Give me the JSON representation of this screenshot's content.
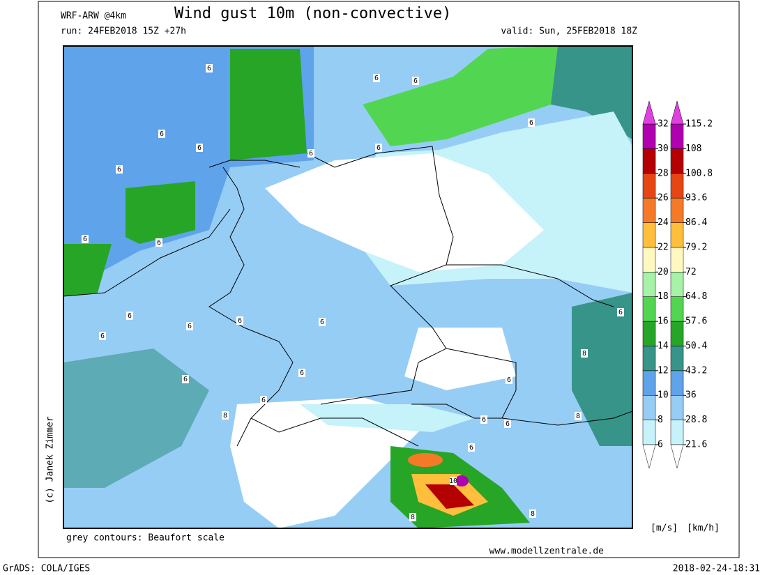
{
  "header": {
    "model": "WRF-ARW @4km",
    "title": "Wind gust 10m (non-convective)",
    "run": "run: 24FEB2018 15Z +27h",
    "valid": "valid: Sun, 25FEB2018 18Z"
  },
  "map": {
    "contour_labels": [
      "6",
      "6",
      "6",
      "6",
      "6",
      "6",
      "6",
      "6",
      "6",
      "6",
      "6",
      "6",
      "6",
      "6",
      "6",
      "6",
      "6",
      "6",
      "6",
      "6",
      "6",
      "6",
      "6",
      "6",
      "8",
      "8",
      "8",
      "8",
      "8",
      "10"
    ]
  },
  "legend": {
    "ms": [
      6,
      8,
      10,
      12,
      14,
      16,
      18,
      20,
      22,
      24,
      26,
      28,
      30,
      32
    ],
    "kmh": [
      21.6,
      28.8,
      36,
      43.2,
      50.4,
      57.6,
      64.8,
      72,
      79.2,
      86.4,
      93.6,
      100.8,
      108,
      115.2
    ],
    "colors": [
      "#c6f2fa",
      "#96cdf5",
      "#5fa3ea",
      "#379488",
      "#27a527",
      "#52d652",
      "#a6f2a6",
      "#fff8c0",
      "#ffbe3c",
      "#f57a28",
      "#e64614",
      "#b40000",
      "#b000b0"
    ],
    "unit_ms": "[m/s]",
    "unit_kmh": "[km/h]"
  },
  "footer": {
    "note": "grey contours: Beaufort scale",
    "site": "www.modellzentrale.de",
    "credit": "(c) Janek Zimmer",
    "software": "GrADS: COLA/IGES",
    "timestamp": "2018-02-24-18:31"
  }
}
